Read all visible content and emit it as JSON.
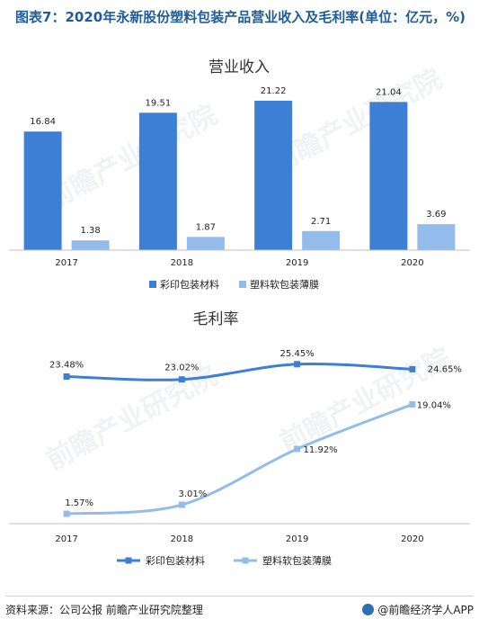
{
  "figure": {
    "title": "图表7：2020年永新股份塑料包装产品营业收入及毛利率(单位：亿元，%)"
  },
  "colors": {
    "series_1": "#3d7fd4",
    "series_2": "#93bcea",
    "title": "#1f5c99"
  },
  "chart_data": [
    {
      "type": "bar",
      "title": "营业收入",
      "categories": [
        "2017",
        "2018",
        "2019",
        "2020"
      ],
      "series": [
        {
          "name": "彩印包装材料",
          "values": [
            16.84,
            19.51,
            21.22,
            21.04
          ],
          "labels": [
            "16.84",
            "19.51",
            "21.22",
            "21.04"
          ]
        },
        {
          "name": "塑料软包装薄膜",
          "values": [
            1.38,
            1.87,
            2.71,
            3.69
          ],
          "labels": [
            "1.38",
            "1.87",
            "2.71",
            "3.69"
          ]
        }
      ],
      "ylim": [
        0,
        23
      ],
      "legend": "bottom",
      "grid": false
    },
    {
      "type": "line",
      "title": "毛利率",
      "categories": [
        "2017",
        "2018",
        "2019",
        "2020"
      ],
      "series": [
        {
          "name": "彩印包装材料",
          "values": [
            23.48,
            23.02,
            25.45,
            24.65
          ],
          "labels": [
            "23.48%",
            "23.02%",
            "25.45%",
            "24.65%"
          ]
        },
        {
          "name": "塑料软包装薄膜",
          "values": [
            1.57,
            3.01,
            11.92,
            19.04
          ],
          "labels": [
            "1.57%",
            "3.01%",
            "11.92%",
            "19.04%"
          ]
        }
      ],
      "ylim": [
        0,
        27
      ],
      "legend": "bottom",
      "grid": false,
      "smooth": true
    }
  ],
  "footer": {
    "source": "资料来源：公司公报 前瞻产业研究院整理",
    "brand": "@前瞻经济学人APP"
  },
  "watermark": "前瞻产业研究院"
}
